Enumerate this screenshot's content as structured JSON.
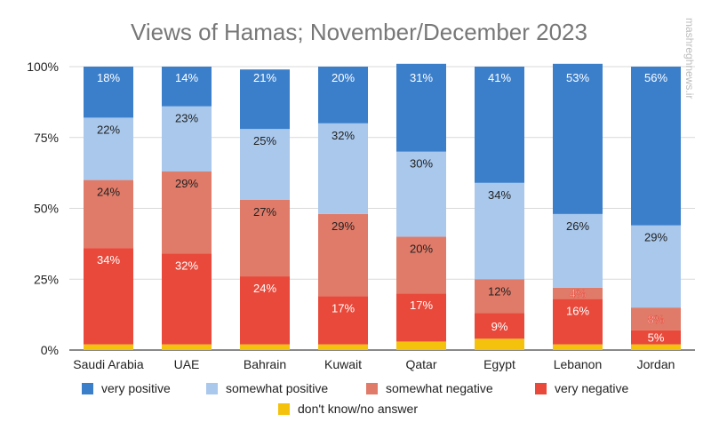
{
  "watermark": {
    "name": "mashreghnews.ir"
  },
  "chart_data": {
    "type": "bar",
    "stacked": true,
    "title": "Views of Hamas; November/December 2023",
    "categories": [
      "Saudi Arabia",
      "UAE",
      "Bahrain",
      "Kuwait",
      "Qatar",
      "Egypt",
      "Lebanon",
      "Jordan"
    ],
    "ylim": [
      0,
      100
    ],
    "y_ticks": [
      "0%",
      "25%",
      "50%",
      "75%",
      "100%"
    ],
    "grid": true,
    "legend_position": "bottom",
    "series": [
      {
        "name": "don't know/no answer",
        "color": "#f4c20d",
        "values": [
          2,
          2,
          2,
          2,
          3,
          4,
          2,
          2
        ],
        "labels": [
          "",
          "",
          "",
          "",
          "",
          "",
          "",
          ""
        ]
      },
      {
        "name": "very negative",
        "color": "#e8493a",
        "values": [
          34,
          32,
          24,
          17,
          17,
          9,
          16,
          5
        ],
        "labels": [
          "34%",
          "32%",
          "24%",
          "17%",
          "17%",
          "9%",
          "16%",
          "5%"
        ]
      },
      {
        "name": "somewhat negative",
        "color": "#e07b69",
        "values": [
          24,
          29,
          27,
          29,
          20,
          12,
          4,
          8
        ],
        "labels": [
          "24%",
          "29%",
          "27%",
          "29%",
          "20%",
          "12%",
          "4%",
          "8%"
        ]
      },
      {
        "name": "somewhat positive",
        "color": "#a9c8ec",
        "values": [
          22,
          23,
          25,
          32,
          30,
          34,
          26,
          29
        ],
        "labels": [
          "22%",
          "23%",
          "25%",
          "32%",
          "30%",
          "34%",
          "26%",
          "29%"
        ]
      },
      {
        "name": "very positive",
        "color": "#3b7fcb",
        "values": [
          18,
          14,
          21,
          20,
          31,
          41,
          53,
          56
        ],
        "labels": [
          "18%",
          "14%",
          "21%",
          "20%",
          "31%",
          "41%",
          "53%",
          "56%"
        ]
      }
    ],
    "legend_order": [
      "very positive",
      "somewhat positive",
      "somewhat negative",
      "very negative",
      "don't know/no answer"
    ]
  }
}
